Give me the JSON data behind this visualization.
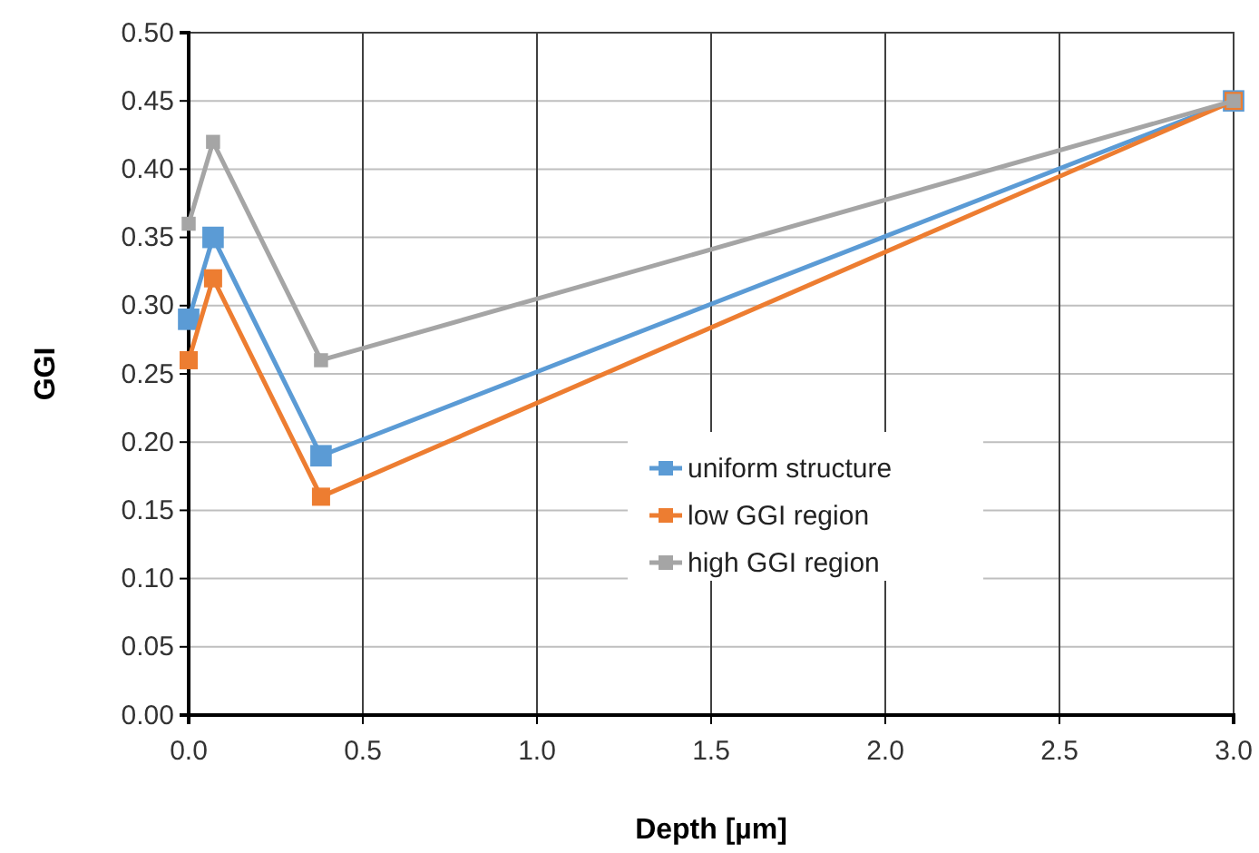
{
  "chart_data": {
    "type": "line",
    "xlabel": "Depth [µm]",
    "ylabel": "GGI",
    "x": [
      0,
      0.07,
      0.38,
      3
    ],
    "series": [
      {
        "name": "uniform structure",
        "color": "#5b9bd5",
        "values": [
          0.29,
          0.35,
          0.19,
          0.45
        ]
      },
      {
        "name": "low GGI region",
        "color": "#ed7d31",
        "values": [
          0.26,
          0.32,
          0.16,
          0.45
        ]
      },
      {
        "name": "high GGI region",
        "color": "#a5a5a5",
        "values": [
          0.36,
          0.42,
          0.26,
          0.45
        ]
      }
    ],
    "xlim": [
      0,
      3
    ],
    "xticks": [
      {
        "value": 0,
        "label": "0.0"
      },
      0.5,
      {
        "value": 1,
        "label": "1.0"
      },
      1.5,
      {
        "value": 2,
        "label": "2.0"
      },
      2.5,
      {
        "value": 3,
        "label": "3.0"
      }
    ],
    "ylim": [
      0,
      0.5
    ],
    "yticks": [
      {
        "value": 0,
        "label": "0.00"
      },
      {
        "value": 0.05,
        "label": "0.05"
      },
      {
        "value": 0.1,
        "label": "0.10"
      },
      {
        "value": 0.15,
        "label": "0.15"
      },
      {
        "value": 0.2,
        "label": "0.20"
      },
      {
        "value": 0.25,
        "label": "0.25"
      },
      {
        "value": 0.3,
        "label": "0.30"
      },
      {
        "value": 0.35,
        "label": "0.35"
      },
      {
        "value": 0.4,
        "label": "0.40"
      },
      {
        "value": 0.45,
        "label": "0.45"
      },
      {
        "value": 0.5,
        "label": "0.50"
      }
    ],
    "grid": true,
    "legend": "bottom",
    "marker": "square",
    "line_style": "solid"
  }
}
